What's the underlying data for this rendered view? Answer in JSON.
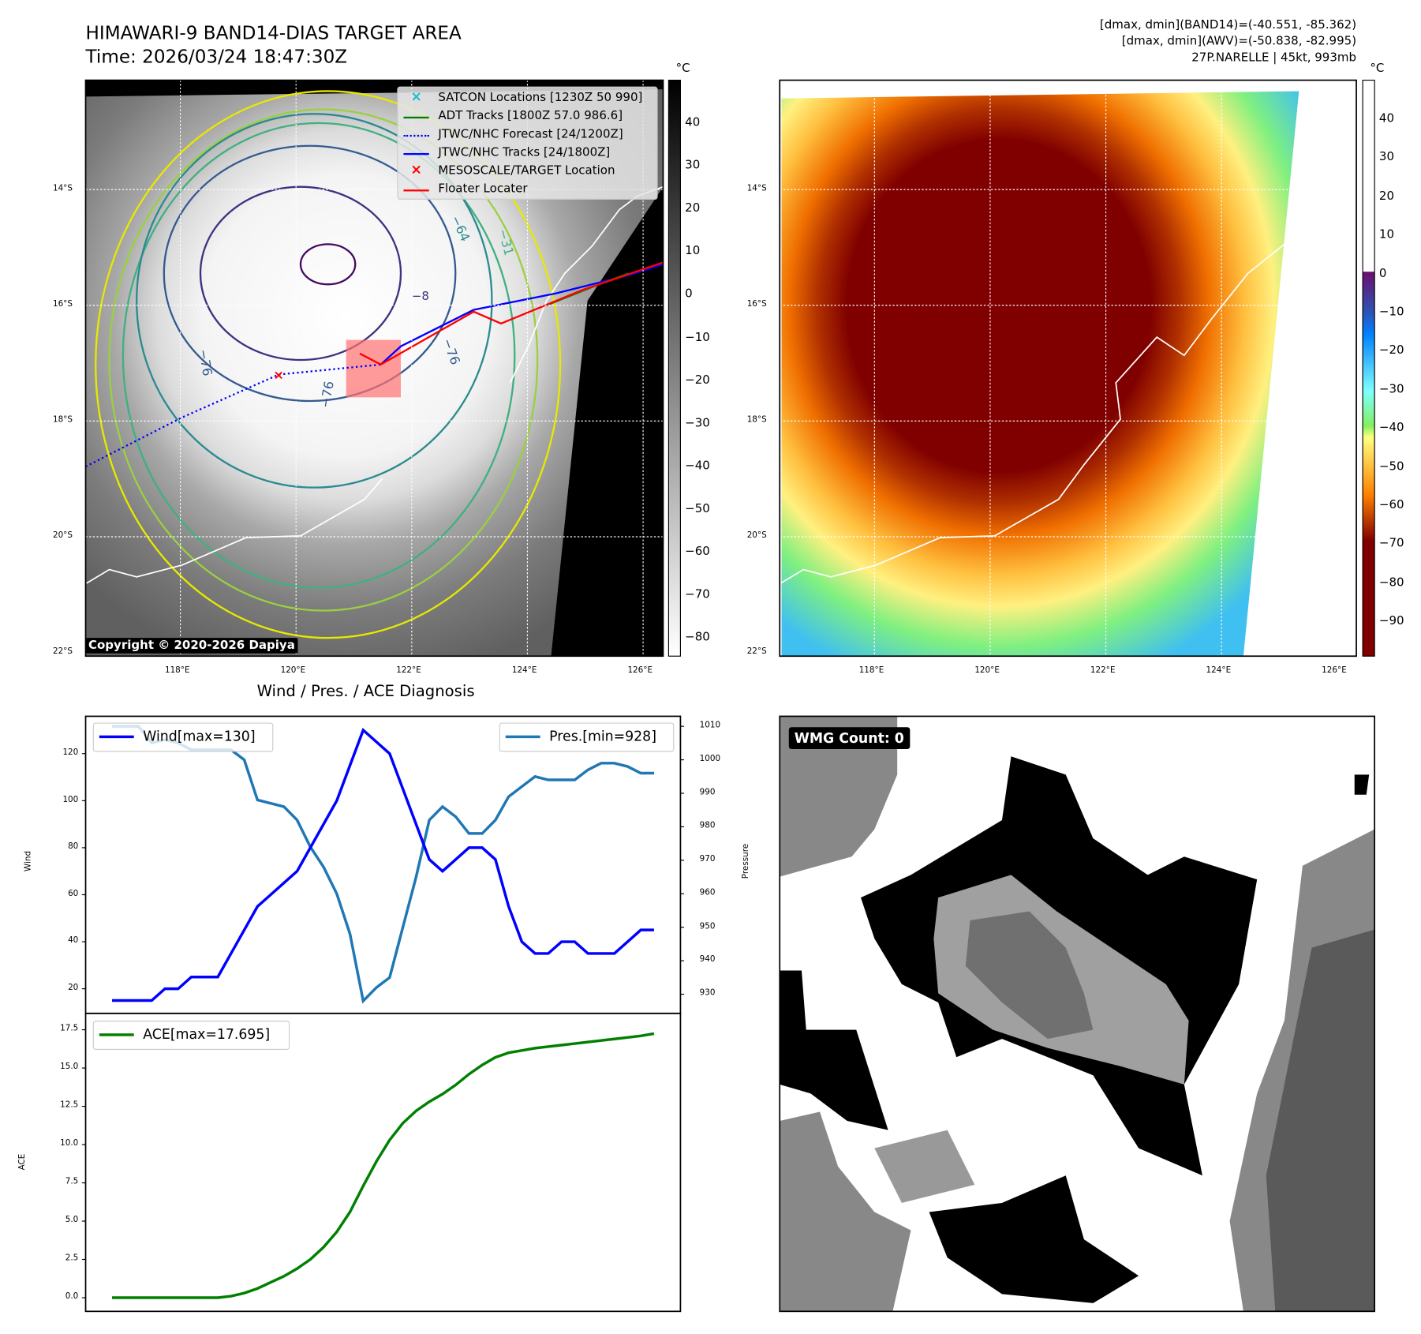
{
  "header": {
    "title": "HIMAWARI-9 BAND14-DIAS TARGET AREA",
    "time": "Time: 2026/03/24 18:47:30Z",
    "stats_band14": "[dmax, dmin](BAND14)=(-40.551, -85.362)",
    "stats_awv": "[dmax, dmin](AWV)=(-50.838, -82.995)",
    "storm": "27P.NARELLE | 45kt, 993mb"
  },
  "left_map": {
    "unit": "°C",
    "colorbar_ticks": [
      "40",
      "30",
      "20",
      "10",
      "0",
      "−10",
      "−20",
      "−30",
      "−40",
      "−50",
      "−60",
      "−70",
      "−80"
    ],
    "lat_labels": [
      "14°S",
      "16°S",
      "18°S",
      "20°S",
      "22°S"
    ],
    "lon_labels": [
      "118°E",
      "120°E",
      "122°E",
      "124°E",
      "126°E"
    ],
    "contour_labels": [
      "−76",
      "−76",
      "−76",
      "−64",
      "−31",
      "−8"
    ],
    "copyright": "Copyright © 2020-2026 Dapiya",
    "legend": [
      {
        "label": "SATCON Locations [1230Z 50 990]",
        "color": "#17becf",
        "symbol": "x-icon"
      },
      {
        "label": "ADT Tracks [1800Z 57.0 986.6]",
        "color": "#008000",
        "symbol": "line-icon"
      },
      {
        "label": "JTWC/NHC Forecast [24/1200Z]",
        "color": "#0000ff",
        "symbol": "dotted-line-icon"
      },
      {
        "label": "JTWC/NHC Tracks [24/1800Z]",
        "color": "#0000ff",
        "symbol": "marker-line-icon"
      },
      {
        "label": "MESOSCALE/TARGET Location",
        "color": "#ff0000",
        "symbol": "x-icon"
      },
      {
        "label": "Floater Locater",
        "color": "#ff0000",
        "symbol": "line-icon"
      }
    ]
  },
  "right_map": {
    "unit": "°C",
    "colorbar_ticks": [
      "40",
      "30",
      "20",
      "10",
      "0",
      "−10",
      "−20",
      "−30",
      "−40",
      "−50",
      "−60",
      "−70",
      "−80",
      "−90"
    ],
    "lat_labels": [
      "14°S",
      "16°S",
      "18°S",
      "20°S",
      "22°S"
    ],
    "lon_labels": [
      "118°E",
      "120°E",
      "122°E",
      "124°E",
      "126°E"
    ]
  },
  "wmg": {
    "label": "WMG Count: 0"
  },
  "chart_data": {
    "type": "line",
    "title": "Wind / Pres. / ACE Diagnosis",
    "x": [
      0,
      1,
      2,
      3,
      4,
      5,
      6,
      7,
      8,
      9,
      10,
      11,
      12,
      13,
      14,
      15,
      16,
      17,
      18,
      19,
      20,
      21,
      22,
      23,
      24,
      25,
      26,
      27,
      28,
      29,
      30,
      31,
      32,
      33,
      34,
      35,
      36,
      37,
      38,
      39,
      40,
      41
    ],
    "panels": [
      {
        "ylabel": "Wind",
        "ylim": [
          10,
          135
        ],
        "yticks": [
          "20",
          "40",
          "60",
          "80",
          "100",
          "120"
        ],
        "y2label": "Pressure",
        "y2lim": [
          921,
          1013
        ],
        "y2ticks": [
          "930",
          "940",
          "950",
          "960",
          "970",
          "980",
          "990",
          "1000",
          "1010"
        ],
        "series": [
          {
            "name": "Wind[max=130]",
            "axis": "left",
            "color": "#0000ff",
            "values": [
              15,
              15,
              15,
              15,
              20,
              20,
              25,
              25,
              25,
              35,
              45,
              55,
              60,
              65,
              70,
              80,
              90,
              100,
              115,
              130,
              125,
              120,
              105,
              90,
              75,
              70,
              75,
              80,
              80,
              75,
              55,
              40,
              35,
              35,
              40,
              40,
              35,
              35,
              35,
              40,
              45,
              45
            ]
          },
          {
            "name": "Pres.[min=928]",
            "axis": "right",
            "color": "#1f77b4",
            "values": [
              1010,
              1010,
              1010,
              1005,
              1006,
              1005,
              1003,
              1003,
              1003,
              1003,
              1000,
              988,
              987,
              986,
              982,
              974,
              968,
              960,
              948,
              928,
              932,
              935,
              950,
              965,
              982,
              986,
              983,
              978,
              978,
              982,
              989,
              992,
              995,
              994,
              994,
              994,
              997,
              999,
              999,
              998,
              996,
              996
            ]
          }
        ]
      },
      {
        "ylabel": "ACE",
        "ylim": [
          -0.9,
          18.6
        ],
        "yticks": [
          "0.0",
          "2.5",
          "5.0",
          "7.5",
          "10.0",
          "12.5",
          "15.0",
          "17.5"
        ],
        "series": [
          {
            "name": "ACE[max=17.695]",
            "color": "#008000",
            "values": [
              0,
              0,
              0,
              0,
              0,
              0,
              0,
              0,
              0,
              0.1,
              0.3,
              0.6,
              1.0,
              1.4,
              1.9,
              2.5,
              3.3,
              4.3,
              5.6,
              7.3,
              8.9,
              10.3,
              11.4,
              12.2,
              12.8,
              13.3,
              13.9,
              14.6,
              15.2,
              15.7,
              16.0,
              16.15,
              16.3,
              16.4,
              16.5,
              16.6,
              16.7,
              16.8,
              16.9,
              17.0,
              17.1,
              17.25
            ]
          }
        ]
      }
    ]
  }
}
